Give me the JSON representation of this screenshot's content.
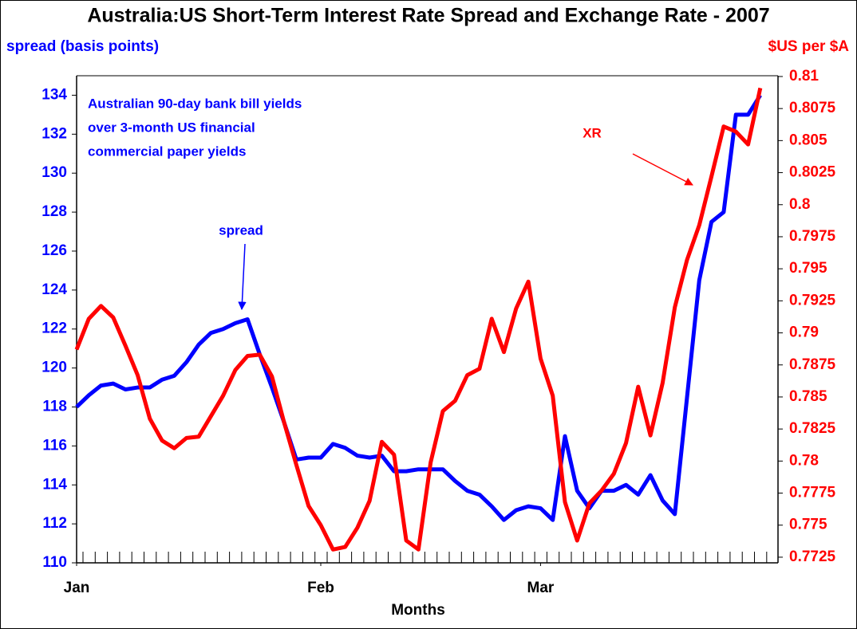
{
  "chart_data": {
    "type": "line",
    "title": "Australia:US Short-Term Interest Rate Spread and Exchange Rate - 2007",
    "y_label": "spread (basis points)",
    "y2_label": "$US per $A",
    "x_label": "Months",
    "annotations": [
      "Australian 90-day bank bill yields",
      "over 3-month US financial",
      "commercial paper yields",
      "spread",
      "XR"
    ],
    "x": [
      0,
      1,
      2,
      3,
      4,
      5,
      6,
      7,
      8,
      9,
      10,
      11,
      12,
      13,
      14,
      15,
      16,
      17,
      18,
      19,
      20,
      21,
      22,
      23,
      24,
      25,
      26,
      27,
      28,
      29,
      30,
      31,
      32,
      33,
      34,
      35,
      36,
      37,
      38,
      39,
      40,
      41,
      42,
      43,
      44,
      45,
      46,
      47,
      48,
      49,
      50,
      51,
      52,
      53,
      54,
      55,
      56
    ],
    "xlim": [
      0,
      57.45
    ],
    "xticks": [
      {
        "value": 0,
        "label": "Jan"
      },
      {
        "value": 20,
        "label": "Feb"
      },
      {
        "value": 38,
        "label": "Mar"
      }
    ],
    "ylim": [
      110,
      135
    ],
    "yticks": [
      110,
      112,
      114,
      116,
      118,
      120,
      122,
      124,
      126,
      128,
      130,
      132,
      134
    ],
    "y2lim": [
      0.77206,
      0.81006
    ],
    "y2ticks": [
      0.7725,
      0.775,
      0.7775,
      0.78,
      0.7825,
      0.785,
      0.7875,
      0.79,
      0.7925,
      0.795,
      0.7975,
      0.8,
      0.8025,
      0.805,
      0.8075,
      0.81
    ],
    "series": [
      {
        "name": "spread",
        "color": "#0000ff",
        "axis": "y",
        "values": [
          118,
          118.6,
          119.1,
          119.2,
          118.9,
          119,
          119,
          119.4,
          119.6,
          120.3,
          121.2,
          121.8,
          122,
          122.3,
          122.5,
          120.7,
          119,
          117.2,
          115.3,
          115.4,
          115.4,
          116.1,
          115.9,
          115.5,
          115.4,
          115.5,
          114.7,
          114.7,
          114.8,
          114.8,
          114.8,
          114.2,
          113.7,
          113.5,
          112.9,
          112.2,
          112.7,
          112.9,
          112.8,
          112.2,
          116.5,
          113.7,
          112.8,
          113.7,
          113.7,
          114,
          113.5,
          114.5,
          113.2,
          112.5,
          118.5,
          124.5,
          127.5,
          128,
          133,
          133,
          134
        ]
      },
      {
        "name": "XR",
        "color": "#ff0000",
        "axis": "y2",
        "values": [
          0.7887,
          0.7911,
          0.7921,
          0.7912,
          0.789,
          0.7867,
          0.7833,
          0.7816,
          0.781,
          0.7818,
          0.7819,
          0.7835,
          0.7851,
          0.7871,
          0.7882,
          0.7883,
          0.7866,
          0.783,
          0.7797,
          0.7765,
          0.775,
          0.7731,
          0.7733,
          0.7748,
          0.7769,
          0.7815,
          0.7805,
          0.7738,
          0.7731,
          0.7799,
          0.7839,
          0.7847,
          0.7867,
          0.7872,
          0.7911,
          0.7885,
          0.7919,
          0.794,
          0.788,
          0.7851,
          0.7768,
          0.7738,
          0.7767,
          0.7777,
          0.779,
          0.7814,
          0.7858,
          0.782,
          0.7861,
          0.792,
          0.7957,
          0.7984,
          0.8022,
          0.8061,
          0.8057,
          0.8047,
          0.8091
        ]
      }
    ]
  }
}
